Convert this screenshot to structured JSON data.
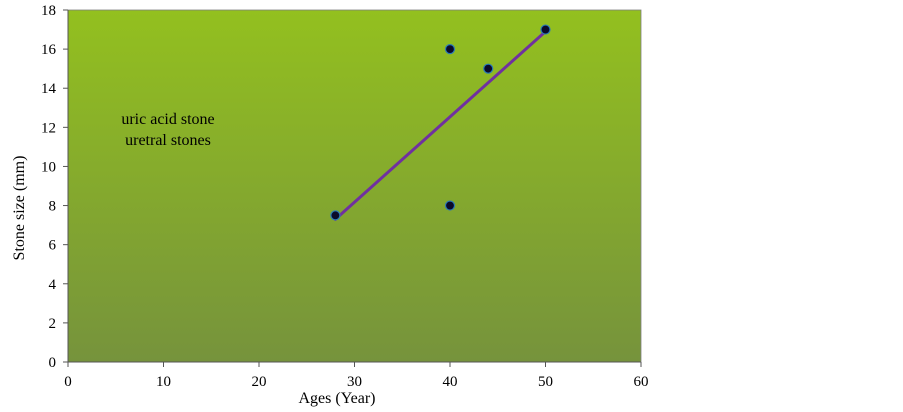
{
  "chart_data": {
    "type": "scatter",
    "title": "",
    "xlabel": "Ages (Year)",
    "ylabel": "Stone size (mm)",
    "xlim": [
      0,
      60
    ],
    "ylim": [
      0,
      18
    ],
    "x_ticks": [
      0,
      10,
      20,
      30,
      40,
      50,
      60
    ],
    "y_ticks": [
      0,
      2,
      4,
      6,
      8,
      10,
      12,
      14,
      16,
      18
    ],
    "grid": false,
    "legend": "none",
    "plot_background": {
      "top": "#93c01f",
      "bottom": "#76933c"
    },
    "series": [
      {
        "points": [
          {
            "x": 28,
            "y": 7.5
          },
          {
            "x": 40,
            "y": 16
          },
          {
            "x": 40,
            "y": 8
          },
          {
            "x": 44,
            "y": 15
          },
          {
            "x": 50,
            "y": 17
          }
        ],
        "marker_color": "#0a0a2a",
        "marker_edge": "#2a7ab8"
      }
    ],
    "trendline": {
      "type": "linear",
      "from": {
        "x": 28,
        "y": 7.3
      },
      "to": {
        "x": 50,
        "y": 16.9
      },
      "color": "#7030a0"
    },
    "annotations": [
      "uric acid stone",
      "uretral stones"
    ]
  }
}
